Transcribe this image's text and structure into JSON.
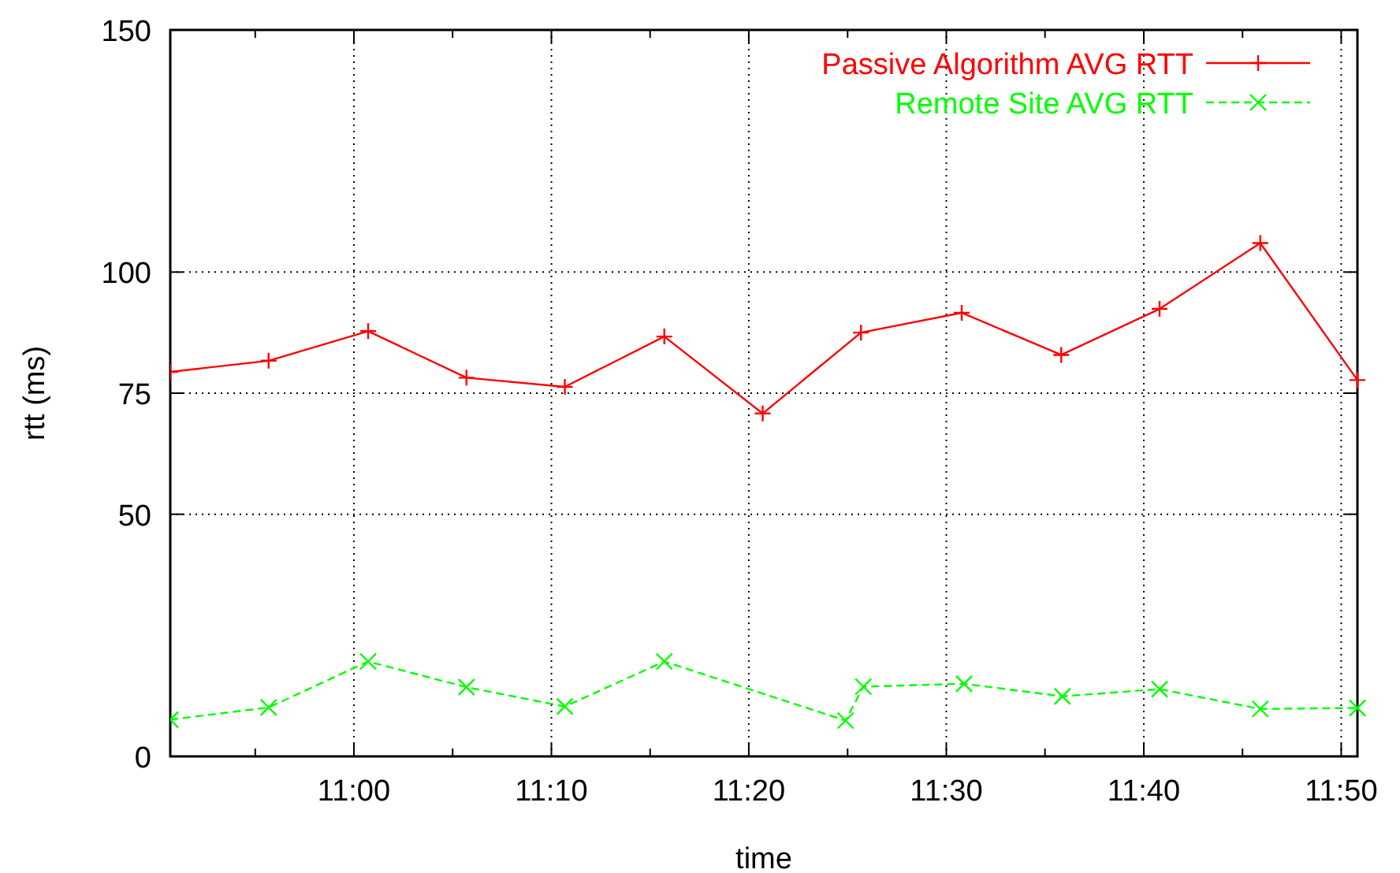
{
  "chart_data": {
    "type": "line",
    "xlabel": "time",
    "ylabel": "rtt (ms)",
    "xlim": [
      10.845,
      11.847
    ],
    "ylim": [
      0,
      150
    ],
    "xticks": [
      {
        "value": 10.9167,
        "label": null
      },
      {
        "value": 11,
        "label": "11:00"
      },
      {
        "value": 11.0833,
        "label": null
      },
      {
        "value": 11.1667,
        "label": "11:10"
      },
      {
        "value": 11.25,
        "label": null
      },
      {
        "value": 11.3333,
        "label": "11:20"
      },
      {
        "value": 11.4167,
        "label": null
      },
      {
        "value": 11.5,
        "label": "11:30"
      },
      {
        "value": 11.5833,
        "label": null
      },
      {
        "value": 11.6667,
        "label": "11:40"
      },
      {
        "value": 11.75,
        "label": null
      },
      {
        "value": 11.8333,
        "label": "11:50"
      }
    ],
    "yticks": [
      0,
      50,
      75,
      100,
      150
    ],
    "grid": true,
    "legend": "top right",
    "series": [
      {
        "name": "Passive Algorithm AVG RTT",
        "color": "#ff0000",
        "marker": "cross",
        "line_style": "solid",
        "x": [
          10.845,
          10.928,
          11.012,
          11.095,
          11.178,
          11.262,
          11.345,
          11.428,
          11.513,
          11.597,
          11.68,
          11.765,
          11.847
        ],
        "values": [
          79.4,
          81.7,
          87.8,
          78.2,
          76.3,
          86.7,
          70.8,
          87.5,
          91.6,
          82.9,
          92.4,
          106,
          77.7
        ]
      },
      {
        "name": "Remote Site AVG RTT",
        "color": "#00ff00",
        "marker": "cross",
        "line_style": "dashed",
        "x": [
          10.845,
          10.928,
          11.012,
          11.095,
          11.178,
          11.262,
          11.415,
          11.43,
          11.515,
          11.598,
          11.68,
          11.765,
          11.847
        ],
        "values": [
          7.6,
          10.1,
          19.6,
          14.3,
          10.3,
          19.6,
          7.4,
          14.4,
          15,
          12.4,
          13.9,
          9.8,
          10
        ]
      }
    ]
  }
}
